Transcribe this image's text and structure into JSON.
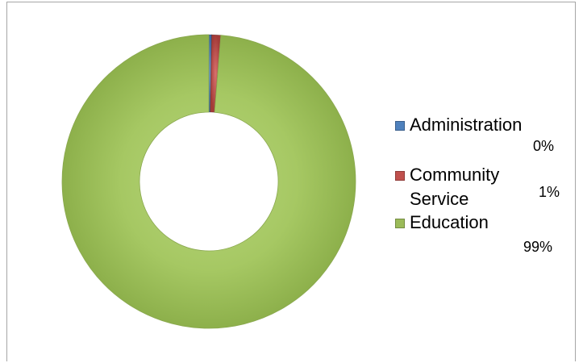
{
  "chart_data": {
    "type": "pie",
    "variant": "donut",
    "title": "",
    "categories": [
      "Administration",
      "Community Service",
      "Education"
    ],
    "values": [
      0.3,
      1,
      98.7
    ],
    "data_labels": [
      "0%",
      "1%",
      "99%"
    ],
    "colors": [
      "#4f81bd",
      "#c0504d",
      "#9bbb59"
    ],
    "legend_placement": "right",
    "legend": [
      {
        "label_lines": [
          "Administration"
        ],
        "value": "0%"
      },
      {
        "label_lines": [
          "Community",
          "Service"
        ],
        "value": "1%"
      },
      {
        "label_lines": [
          "Education"
        ],
        "value": "99%"
      }
    ]
  }
}
